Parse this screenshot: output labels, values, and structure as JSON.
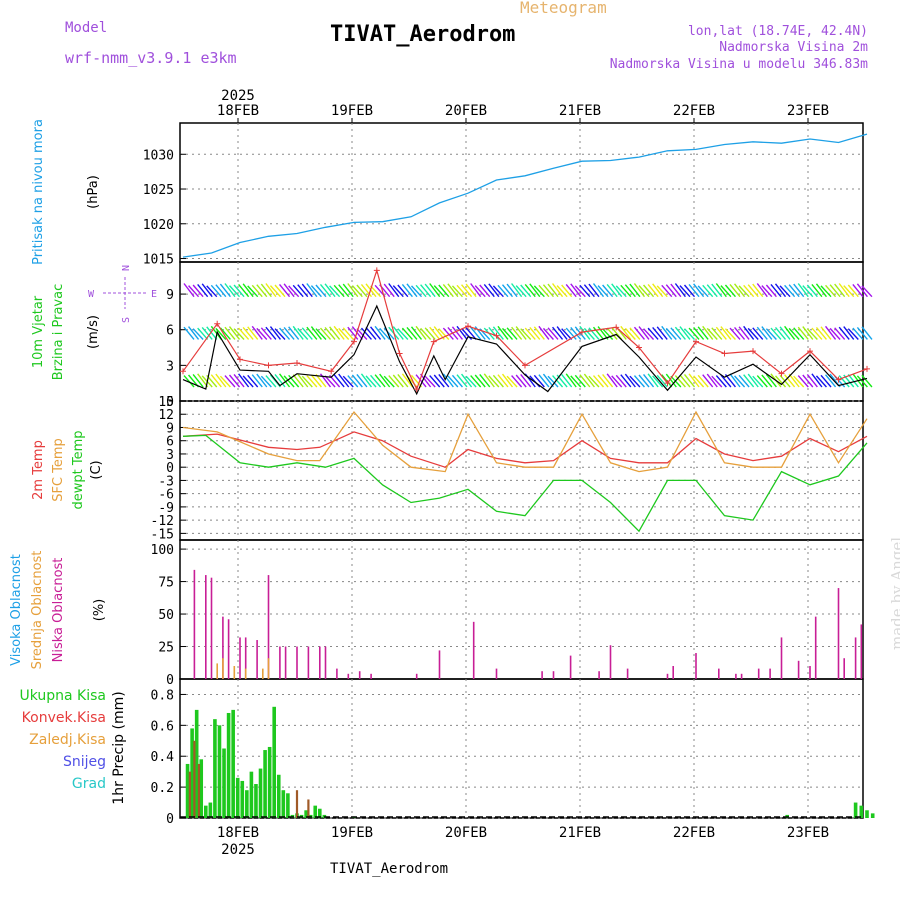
{
  "header": {
    "model_label": "Model",
    "model_name": "wrf-nmm_v3.9.1  e3km",
    "chart_kind": "Meteogram",
    "station": "TIVAT_Aerodrom",
    "lonlat": "lon,lat (18.74E, 42.4N)",
    "elev_station": "Nadmorska Visina 2m",
    "elev_model": "Nadmorska Visina u modelu 346.83m",
    "footer_station": "TIVAT_Aerodrom",
    "watermark": "made by Angel"
  },
  "colors": {
    "pressure": "#1ea0e6",
    "label_cyan": "#1ea0e6",
    "green": "#1ec81e",
    "red": "#e63c3c",
    "orange": "#e6a03c",
    "magenta": "#c81e96",
    "purple": "#a050dc",
    "blue": "#5050e6",
    "teal": "#28c8c8"
  },
  "chart_data": [
    {
      "id": "pressure",
      "type": "line",
      "ylabel": "Pritisak na nivou mora",
      "unit": "(hPa)",
      "ylim": [
        1014.5,
        1034.5
      ],
      "yticks": [
        1015,
        1020,
        1025,
        1030
      ],
      "series": [
        {
          "name": "MSLP",
          "x": [
            0,
            0.25,
            0.5,
            0.75,
            1,
            1.25,
            1.5,
            1.75,
            2,
            2.25,
            2.5,
            2.75,
            3,
            3.25,
            3.5,
            3.75,
            4,
            4.25,
            4.5,
            4.75,
            5,
            5.25,
            5.5,
            5.75,
            6
          ],
          "values": [
            1015.2,
            1015.8,
            1017.3,
            1018.2,
            1018.6,
            1019.5,
            1020.2,
            1020.3,
            1021.0,
            1023.0,
            1024.4,
            1026.3,
            1026.9,
            1028.0,
            1029.0,
            1029.1,
            1029.6,
            1030.5,
            1030.7,
            1031.4,
            1031.8,
            1031.6,
            1032.2,
            1031.7,
            1032.9
          ]
        }
      ]
    },
    {
      "id": "wind",
      "type": "line",
      "ylabel": "10m Vjetar Brzina i Pravac",
      "unit": "(m/s)",
      "compass": {
        "north": "N",
        "west": "W",
        "east": "E",
        "south": "S"
      },
      "ylim": [
        0,
        11.7
      ],
      "yticks": [
        0,
        3,
        6,
        9
      ],
      "series": [
        {
          "name": "speed",
          "x": [
            0,
            0.2,
            0.3,
            0.5,
            0.75,
            0.85,
            1,
            1.3,
            1.5,
            1.7,
            1.9,
            2.05,
            2.2,
            2.3,
            2.5,
            2.75,
            3,
            3.2,
            3.5,
            3.8,
            4,
            4.25,
            4.5,
            4.75,
            5,
            5.25,
            5.5,
            5.75,
            6
          ],
          "values": [
            1.8,
            1.0,
            5.8,
            2.6,
            2.5,
            1.3,
            2.3,
            2.0,
            3.9,
            8.0,
            3.3,
            0.6,
            3.8,
            1.8,
            5.4,
            4.8,
            2.2,
            0.8,
            4.6,
            5.6,
            3.7,
            0.9,
            3.7,
            2.0,
            3.1,
            1.4,
            3.9,
            1.3,
            1.9
          ]
        },
        {
          "name": "gust",
          "x": [
            0,
            0.3,
            0.5,
            0.75,
            1,
            1.3,
            1.5,
            1.7,
            1.9,
            2.05,
            2.2,
            2.5,
            2.75,
            3,
            3.5,
            3.8,
            4,
            4.25,
            4.5,
            4.75,
            5,
            5.25,
            5.5,
            5.75,
            6
          ],
          "values": [
            2.5,
            6.5,
            3.5,
            3.0,
            3.2,
            2.5,
            5.0,
            11.0,
            4.0,
            1.0,
            5.0,
            6.3,
            5.5,
            3.0,
            5.8,
            6.2,
            4.5,
            1.5,
            5.0,
            4.0,
            4.2,
            2.3,
            4.2,
            1.8,
            2.7
          ]
        }
      ]
    },
    {
      "id": "temperature",
      "type": "line",
      "ylabels": [
        "2m Temp",
        "SFC Temp",
        "dewpt Temp"
      ],
      "unit": "(C)",
      "ylim": [
        -16.5,
        15
      ],
      "yticks": [
        -15,
        -12,
        -9,
        -6,
        -3,
        0,
        3,
        6,
        9,
        12,
        15
      ],
      "series": [
        {
          "name": "2m Temp",
          "x": [
            0,
            0.3,
            0.75,
            1,
            1.2,
            1.5,
            1.75,
            2,
            2.3,
            2.5,
            2.75,
            3,
            3.25,
            3.5,
            3.75,
            4,
            4.25,
            4.5,
            4.75,
            5,
            5.25,
            5.5,
            5.75,
            6
          ],
          "values": [
            7,
            7.5,
            4.5,
            4,
            4.5,
            8,
            6,
            2.5,
            0,
            4,
            2,
            1,
            1.5,
            6,
            2,
            1,
            1,
            6.5,
            3,
            1.5,
            2.5,
            6.5,
            3.5,
            7
          ]
        },
        {
          "name": "SFC Temp",
          "x": [
            0,
            0.3,
            0.75,
            1,
            1.2,
            1.5,
            1.75,
            2,
            2.3,
            2.5,
            2.75,
            3,
            3.25,
            3.5,
            3.75,
            4,
            4.25,
            4.5,
            4.75,
            5,
            5.25,
            5.5,
            5.75,
            6
          ],
          "values": [
            9,
            8,
            3,
            1.5,
            1.5,
            12.5,
            5,
            0,
            -1,
            12,
            1,
            0,
            0,
            12,
            1,
            -1,
            0,
            12.5,
            1,
            0,
            0,
            12,
            1,
            11
          ]
        },
        {
          "name": "dewpt Temp",
          "x": [
            0,
            0.2,
            0.5,
            0.75,
            1,
            1.25,
            1.5,
            1.75,
            2,
            2.25,
            2.5,
            2.75,
            3,
            3.25,
            3.5,
            3.75,
            4,
            4.25,
            4.5,
            4.75,
            5,
            5.25,
            5.5,
            5.75,
            6
          ],
          "values": [
            7,
            7.2,
            1,
            0,
            1,
            0,
            2,
            -4,
            -8,
            -7,
            -5,
            -10,
            -11,
            -3,
            -3,
            -8,
            -14.5,
            -3,
            -3,
            -11,
            -12,
            -1,
            -4,
            -2,
            5.5
          ]
        }
      ]
    },
    {
      "id": "clouds",
      "type": "bar",
      "ylabels": [
        "Visoka Oblacnost",
        "Srednja Oblacnost",
        "Niska Oblacnost"
      ],
      "unit": "(%)",
      "ylim": [
        0,
        107
      ],
      "yticks": [
        0,
        25,
        50,
        75,
        100
      ],
      "series": [
        {
          "name": "Niska",
          "x": [
            0.1,
            0.2,
            0.25,
            0.35,
            0.4,
            0.5,
            0.55,
            0.65,
            0.75,
            0.85,
            0.9,
            1.0,
            1.1,
            1.2,
            1.25,
            1.35,
            1.45,
            1.55,
            1.65,
            2.05,
            2.25,
            2.55,
            2.75,
            3.15,
            3.25,
            3.4,
            3.65,
            3.75,
            3.9,
            4.25,
            4.3,
            4.5,
            4.7,
            4.85,
            4.9,
            5.05,
            5.15,
            5.25,
            5.4,
            5.5,
            5.55,
            5.75,
            5.8,
            5.9,
            5.95
          ],
          "values": [
            84,
            80,
            78,
            48,
            46,
            32,
            32,
            30,
            80,
            25,
            25,
            25,
            25,
            25,
            25,
            8,
            4,
            6,
            4,
            4,
            22,
            44,
            8,
            6,
            6,
            18,
            6,
            26,
            8,
            4,
            10,
            20,
            8,
            4,
            4,
            8,
            8,
            32,
            14,
            10,
            48,
            70,
            16,
            32,
            42
          ]
        },
        {
          "name": "Srednja",
          "x": [
            0.3,
            0.35,
            0.45,
            0.55,
            0.7,
            0.75
          ],
          "values": [
            12,
            16,
            10,
            8,
            8,
            16
          ]
        }
      ]
    },
    {
      "id": "precip",
      "type": "bar",
      "ylabels": [
        "Ukupna Kisa",
        "Konvek.Kisa",
        "Zaledj.Kisa",
        "Snijeg",
        "Grad"
      ],
      "ylabel": "1hr Precip",
      "unit": "(mm)",
      "ylim": [
        0,
        0.9
      ],
      "yticks": [
        0,
        0.2,
        0.4,
        0.6,
        0.8
      ],
      "series": [
        {
          "name": "Ukupna",
          "x": [
            0.04,
            0.08,
            0.12,
            0.16,
            0.2,
            0.24,
            0.28,
            0.32,
            0.36,
            0.4,
            0.44,
            0.48,
            0.52,
            0.56,
            0.6,
            0.64,
            0.68,
            0.72,
            0.76,
            0.8,
            0.84,
            0.88,
            0.92,
            0.96,
            1.0,
            1.04,
            1.08,
            1.12,
            1.16,
            1.2,
            1.24,
            1.5,
            5.3,
            5.9,
            5.95,
            6.0,
            6.05
          ],
          "values": [
            0.35,
            0.58,
            0.7,
            0.38,
            0.08,
            0.1,
            0.64,
            0.6,
            0.45,
            0.68,
            0.7,
            0.26,
            0.24,
            0.18,
            0.3,
            0.22,
            0.32,
            0.44,
            0.46,
            0.72,
            0.28,
            0.18,
            0.16,
            0.02,
            0.03,
            0.02,
            0.05,
            0.02,
            0.08,
            0.06,
            0.02,
            0.01,
            0.02,
            0.1,
            0.08,
            0.05,
            0.03
          ]
        },
        {
          "name": "Konvek",
          "x": [
            0.06,
            0.1,
            0.14,
            1.0,
            1.1
          ],
          "values": [
            0.3,
            0.5,
            0.35,
            0.18,
            0.12
          ]
        }
      ]
    }
  ],
  "xaxis": {
    "day_labels": [
      "18FEB",
      "19FEB",
      "20FEB",
      "21FEB",
      "22FEB",
      "23FEB"
    ],
    "year": "2025"
  }
}
